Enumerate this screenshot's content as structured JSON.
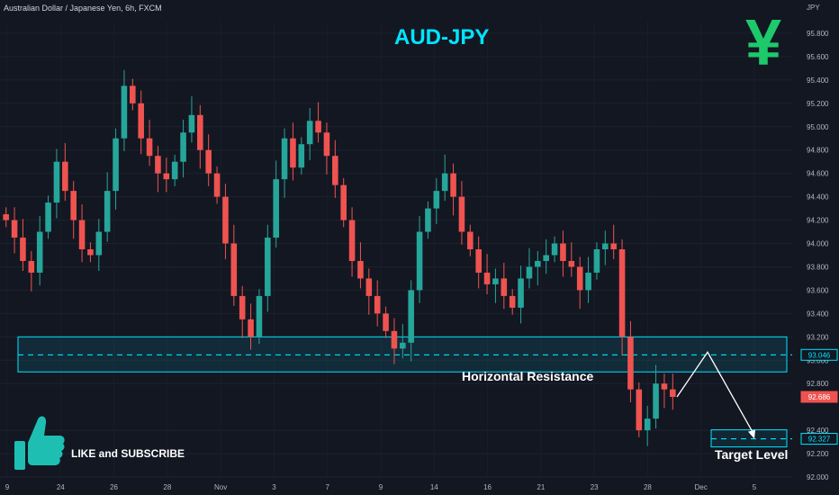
{
  "header": {
    "symbol_text": "Australian Dollar / Japanese Yen, 6h, FXCM",
    "unit": "JPY",
    "title": "AUD-JPY",
    "yen_symbol": "¥"
  },
  "annotations": {
    "zone_label": "Horizontal Resistance",
    "target_label": "Target Level",
    "cta": "LIKE and SUBSCRIBE"
  },
  "icons": [
    "thumbs-up-icon",
    "yen-icon"
  ],
  "colors": {
    "background": "#131722",
    "up": "#26a69a",
    "down": "#ef5350",
    "accent": "#00e5ff",
    "yen": "#1ec96b",
    "thumb": "#1ebfb2"
  },
  "chart_data": {
    "type": "candlestick",
    "title": "AUD-JPY",
    "ylabel": "JPY",
    "ylim": [
      92.0,
      95.9
    ],
    "y_ticks": [
      "95.800",
      "95.600",
      "95.400",
      "95.200",
      "95.000",
      "94.800",
      "94.600",
      "94.400",
      "94.200",
      "94.000",
      "93.800",
      "93.600",
      "93.400",
      "93.200",
      "93.000",
      "92.800",
      "92.400",
      "92.200",
      "92.000"
    ],
    "x_ticks": [
      "9",
      "24",
      "26",
      "28",
      "Nov",
      "3",
      "7",
      "9",
      "14",
      "16",
      "21",
      "23",
      "28",
      "Dec",
      "5"
    ],
    "price_labels": [
      {
        "label": "93.046",
        "value": 93.046,
        "style": "resistance"
      },
      {
        "label": "92.686",
        "value": 92.686,
        "style": "last"
      },
      {
        "label": "92.327",
        "value": 92.327,
        "style": "target"
      }
    ],
    "resistance_zone": [
      92.9,
      93.2
    ],
    "resistance_level": 93.046,
    "target_level": 92.327,
    "projection": [
      93.046,
      92.327
    ],
    "close_path": [
      94.2,
      94.05,
      93.85,
      93.75,
      94.1,
      94.35,
      94.7,
      94.45,
      94.2,
      93.95,
      93.9,
      94.1,
      94.45,
      94.9,
      95.35,
      95.2,
      94.9,
      94.75,
      94.6,
      94.55,
      94.7,
      94.95,
      95.1,
      94.8,
      94.6,
      94.4,
      94.0,
      93.55,
      93.35,
      93.2,
      93.55,
      94.05,
      94.55,
      94.9,
      94.65,
      94.85,
      95.05,
      94.95,
      94.75,
      94.5,
      94.2,
      93.85,
      93.7,
      93.55,
      93.4,
      93.25,
      93.1,
      93.15,
      93.6,
      94.1,
      94.3,
      94.45,
      94.6,
      94.4,
      94.1,
      93.95,
      93.75,
      93.65,
      93.7,
      93.55,
      93.45,
      93.7,
      93.8,
      93.85,
      93.9,
      94.0,
      93.85,
      93.8,
      93.6,
      93.75,
      93.95,
      94.0,
      93.95,
      93.2,
      92.75,
      92.4,
      92.5,
      92.8,
      92.75,
      92.686
    ]
  }
}
